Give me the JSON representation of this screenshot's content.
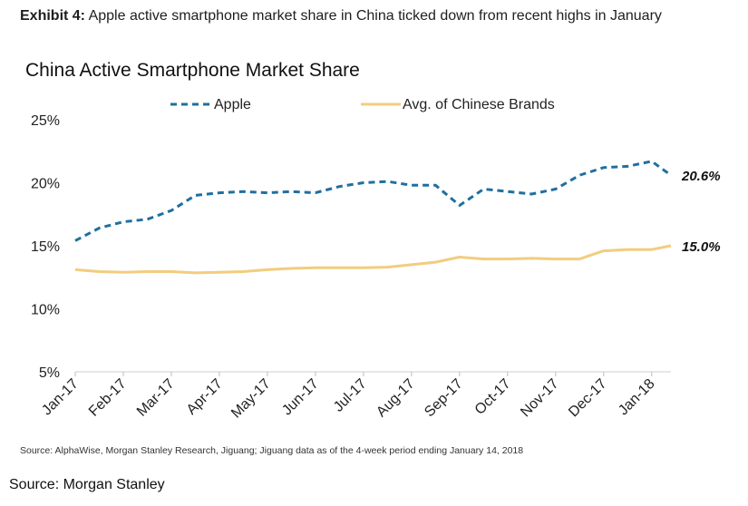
{
  "exhibit": {
    "label": "Exhibit 4:",
    "text": "Apple active smartphone market share in China ticked down from recent highs in January"
  },
  "chart_data": {
    "type": "line",
    "title": "China Active Smartphone Market Share",
    "xlabel": "",
    "ylabel": "",
    "ylim": [
      5,
      25
    ],
    "y_ticks": [
      "5%",
      "10%",
      "15%",
      "20%",
      "25%"
    ],
    "y_tick_values": [
      5,
      10,
      15,
      20,
      25
    ],
    "categories": [
      "Jan-17",
      "Feb-17",
      "Mar-17",
      "Apr-17",
      "May-17",
      "Jun-17",
      "Jul-17",
      "Aug-17",
      "Sep-17",
      "Oct-17",
      "Nov-17",
      "Dec-17",
      "Jan-18"
    ],
    "legend_position": "top",
    "grid": false,
    "series": [
      {
        "name": "Apple",
        "color": "#1f6f9f",
        "style": "dashed",
        "x": [
          0,
          0.5,
          1,
          1.5,
          2,
          2.5,
          3,
          3.5,
          4,
          4.5,
          5,
          5.5,
          6,
          6.5,
          7,
          7.5,
          8,
          8.5,
          9,
          9.5,
          10,
          10.5,
          11,
          11.5,
          12,
          12.4
        ],
        "values": [
          15.4,
          16.4,
          16.9,
          17.1,
          17.8,
          19.0,
          19.2,
          19.3,
          19.2,
          19.3,
          19.2,
          19.7,
          20.0,
          20.1,
          19.8,
          19.8,
          18.2,
          19.5,
          19.3,
          19.1,
          19.5,
          20.6,
          21.2,
          21.3,
          21.7,
          20.6
        ],
        "end_label": "20.6%"
      },
      {
        "name": "Avg. of Chinese Brands",
        "color": "#f2cd7f",
        "style": "solid",
        "x": [
          0,
          0.5,
          1,
          1.5,
          2,
          2.5,
          3,
          3.5,
          4,
          4.5,
          5,
          5.5,
          6,
          6.5,
          7,
          7.5,
          8,
          8.5,
          9,
          9.5,
          10,
          10.5,
          11,
          11.5,
          12,
          12.4
        ],
        "values": [
          13.1,
          12.95,
          12.9,
          12.95,
          12.95,
          12.85,
          12.9,
          12.95,
          13.1,
          13.2,
          13.25,
          13.25,
          13.25,
          13.3,
          13.5,
          13.7,
          14.1,
          13.95,
          13.95,
          14.0,
          13.95,
          13.95,
          14.6,
          14.7,
          14.7,
          15.0
        ],
        "end_label": "15.0%"
      }
    ]
  },
  "chart_source": "Source: AlphaWise, Morgan Stanley Research, Jiguang; Jiguang data as of the 4-week period ending January 14, 2018",
  "page_source": "Source: Morgan Stanley"
}
